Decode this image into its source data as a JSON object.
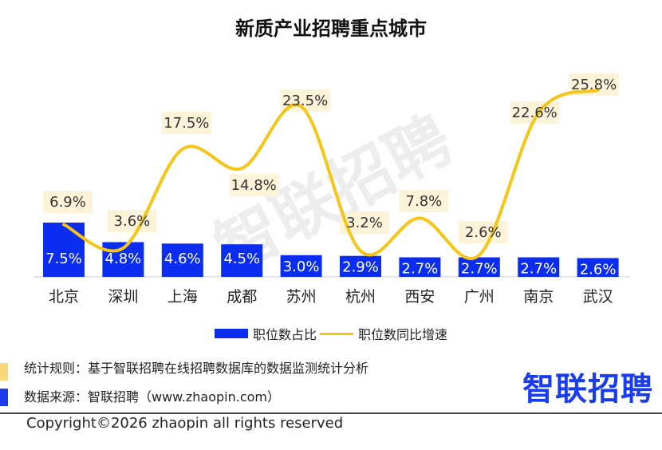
{
  "chart_data": {
    "type": "bar+line",
    "title": "新质产业招聘重点城市",
    "categories": [
      "北京",
      "深圳",
      "上海",
      "成都",
      "苏州",
      "杭州",
      "西安",
      "广州",
      "南京",
      "武汉"
    ],
    "series": [
      {
        "name": "职位数占比",
        "type": "bar",
        "color": "#0a2df0",
        "values": [
          7.5,
          4.8,
          4.6,
          4.5,
          3.0,
          2.9,
          2.7,
          2.7,
          2.7,
          2.6
        ],
        "labels": [
          "7.5%",
          "4.8%",
          "4.6%",
          "4.5%",
          "3.0%",
          "2.9%",
          "2.7%",
          "2.7%",
          "2.7%",
          "2.6%"
        ]
      },
      {
        "name": "职位数同比增速",
        "type": "line",
        "color": "#f5c518",
        "values": [
          6.9,
          3.6,
          17.5,
          14.8,
          23.5,
          3.2,
          7.8,
          2.6,
          22.6,
          25.8
        ],
        "labels": [
          "6.9%",
          "3.6%",
          "17.5%",
          "14.8%",
          "23.5%",
          "3.2%",
          "7.8%",
          "2.6%",
          "22.6%",
          "25.8%"
        ]
      }
    ],
    "legend": "bottom",
    "grid": false
  },
  "watermark": "智联招聘",
  "notes": {
    "rule": "统计规则：基于智联招聘在线招聘数据库的数据监测统计分析",
    "source": "数据来源：智联招聘（www.zhaopin.com）",
    "rule_color": "#f9d77a",
    "source_color": "#1a3cf0"
  },
  "logo": "智联招聘",
  "copyright": "Copyright©2026 zhaopin all rights reserved"
}
